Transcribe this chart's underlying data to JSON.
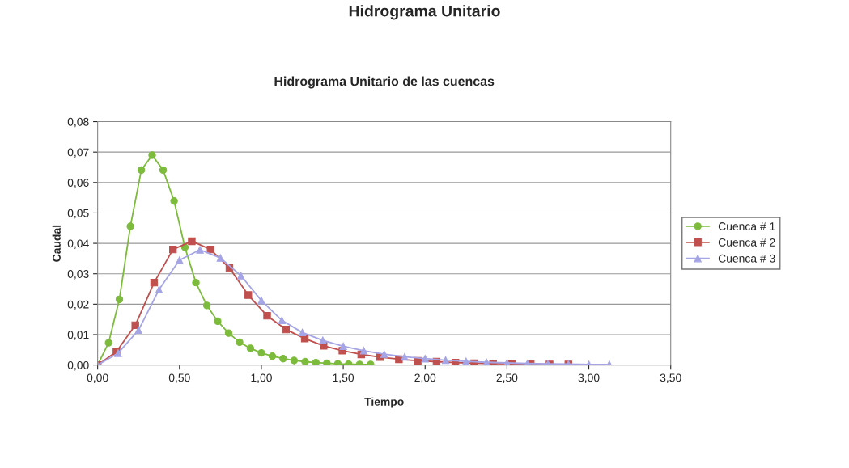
{
  "chart_data": {
    "type": "line",
    "title": "Hidrograma Unitario",
    "subtitle": "Hidrograma Unitario de las cuencas",
    "xlabel": "Tiempo",
    "ylabel": "Caudal",
    "xlim": [
      0,
      3.5
    ],
    "xticks": [
      {
        "value": 0,
        "label": "0,00"
      },
      {
        "value": 0.5,
        "label": "0,50"
      },
      {
        "value": 1,
        "label": "1,00"
      },
      {
        "value": 1.5,
        "label": "1,50"
      },
      {
        "value": 2,
        "label": "2,00"
      },
      {
        "value": 2.5,
        "label": "2,50"
      },
      {
        "value": 3,
        "label": "3,00"
      },
      {
        "value": 3.5,
        "label": "3,50"
      }
    ],
    "ylim": [
      0,
      0.08
    ],
    "yticks": [
      {
        "value": 0,
        "label": "0,00"
      },
      {
        "value": 0.01,
        "label": "0,01"
      },
      {
        "value": 0.02,
        "label": "0,02"
      },
      {
        "value": 0.03,
        "label": "0,03"
      },
      {
        "value": 0.04,
        "label": "0,04"
      },
      {
        "value": 0.05,
        "label": "0,05"
      },
      {
        "value": 0.06,
        "label": "0,06"
      },
      {
        "value": 0.07,
        "label": "0,07"
      },
      {
        "value": 0.08,
        "label": "0,08"
      }
    ],
    "grid": "y",
    "legend": "right",
    "series": [
      {
        "name": "Cuenca # 1",
        "color": "#7dbb3c",
        "marker": "circle",
        "x": [
          0,
          0.067,
          0.133,
          0.2,
          0.267,
          0.333,
          0.4,
          0.467,
          0.533,
          0.6,
          0.667,
          0.733,
          0.8,
          0.867,
          0.933,
          1.0,
          1.067,
          1.133,
          1.2,
          1.267,
          1.333,
          1.4,
          1.467,
          1.533,
          1.6,
          1.667
        ],
        "values": [
          0,
          0.0073,
          0.0216,
          0.0456,
          0.0641,
          0.069,
          0.0641,
          0.0539,
          0.0387,
          0.0271,
          0.0196,
          0.0144,
          0.0105,
          0.0075,
          0.0055,
          0.004,
          0.0029,
          0.0021,
          0.0015,
          0.0011,
          0.0008,
          0.0006,
          0.0004,
          0.0003,
          0.0002,
          0.0002
        ]
      },
      {
        "name": "Cuenca # 2",
        "color": "#c0504d",
        "marker": "square",
        "x": [
          0,
          0.115,
          0.23,
          0.345,
          0.46,
          0.575,
          0.69,
          0.805,
          0.92,
          1.035,
          1.15,
          1.265,
          1.38,
          1.495,
          1.61,
          1.725,
          1.84,
          1.955,
          2.07,
          2.185,
          2.3,
          2.415,
          2.53,
          2.645,
          2.76,
          2.875
        ],
        "values": [
          0,
          0.0044,
          0.0131,
          0.0271,
          0.038,
          0.0407,
          0.038,
          0.0319,
          0.023,
          0.0162,
          0.0117,
          0.0087,
          0.0063,
          0.0047,
          0.0035,
          0.0026,
          0.0019,
          0.0014,
          0.0011,
          0.0008,
          0.0006,
          0.0005,
          0.0004,
          0.0003,
          0.0002,
          0.0002
        ]
      },
      {
        "name": "Cuenca # 3",
        "color": "#a5a5e6",
        "marker": "triangle",
        "x": [
          0,
          0.125,
          0.25,
          0.375,
          0.5,
          0.625,
          0.75,
          0.875,
          1.0,
          1.125,
          1.25,
          1.375,
          1.5,
          1.625,
          1.75,
          1.875,
          2.0,
          2.125,
          2.25,
          2.375,
          2.5,
          2.625,
          2.75,
          2.875,
          3.0,
          3.125
        ],
        "values": [
          0,
          0.0039,
          0.0115,
          0.0248,
          0.0345,
          0.0379,
          0.0352,
          0.0294,
          0.0212,
          0.0147,
          0.0107,
          0.0081,
          0.0062,
          0.0047,
          0.0036,
          0.0027,
          0.0021,
          0.0016,
          0.0012,
          0.0009,
          0.0007,
          0.0005,
          0.0004,
          0.0003,
          0.0002,
          0.0002
        ]
      }
    ]
  }
}
